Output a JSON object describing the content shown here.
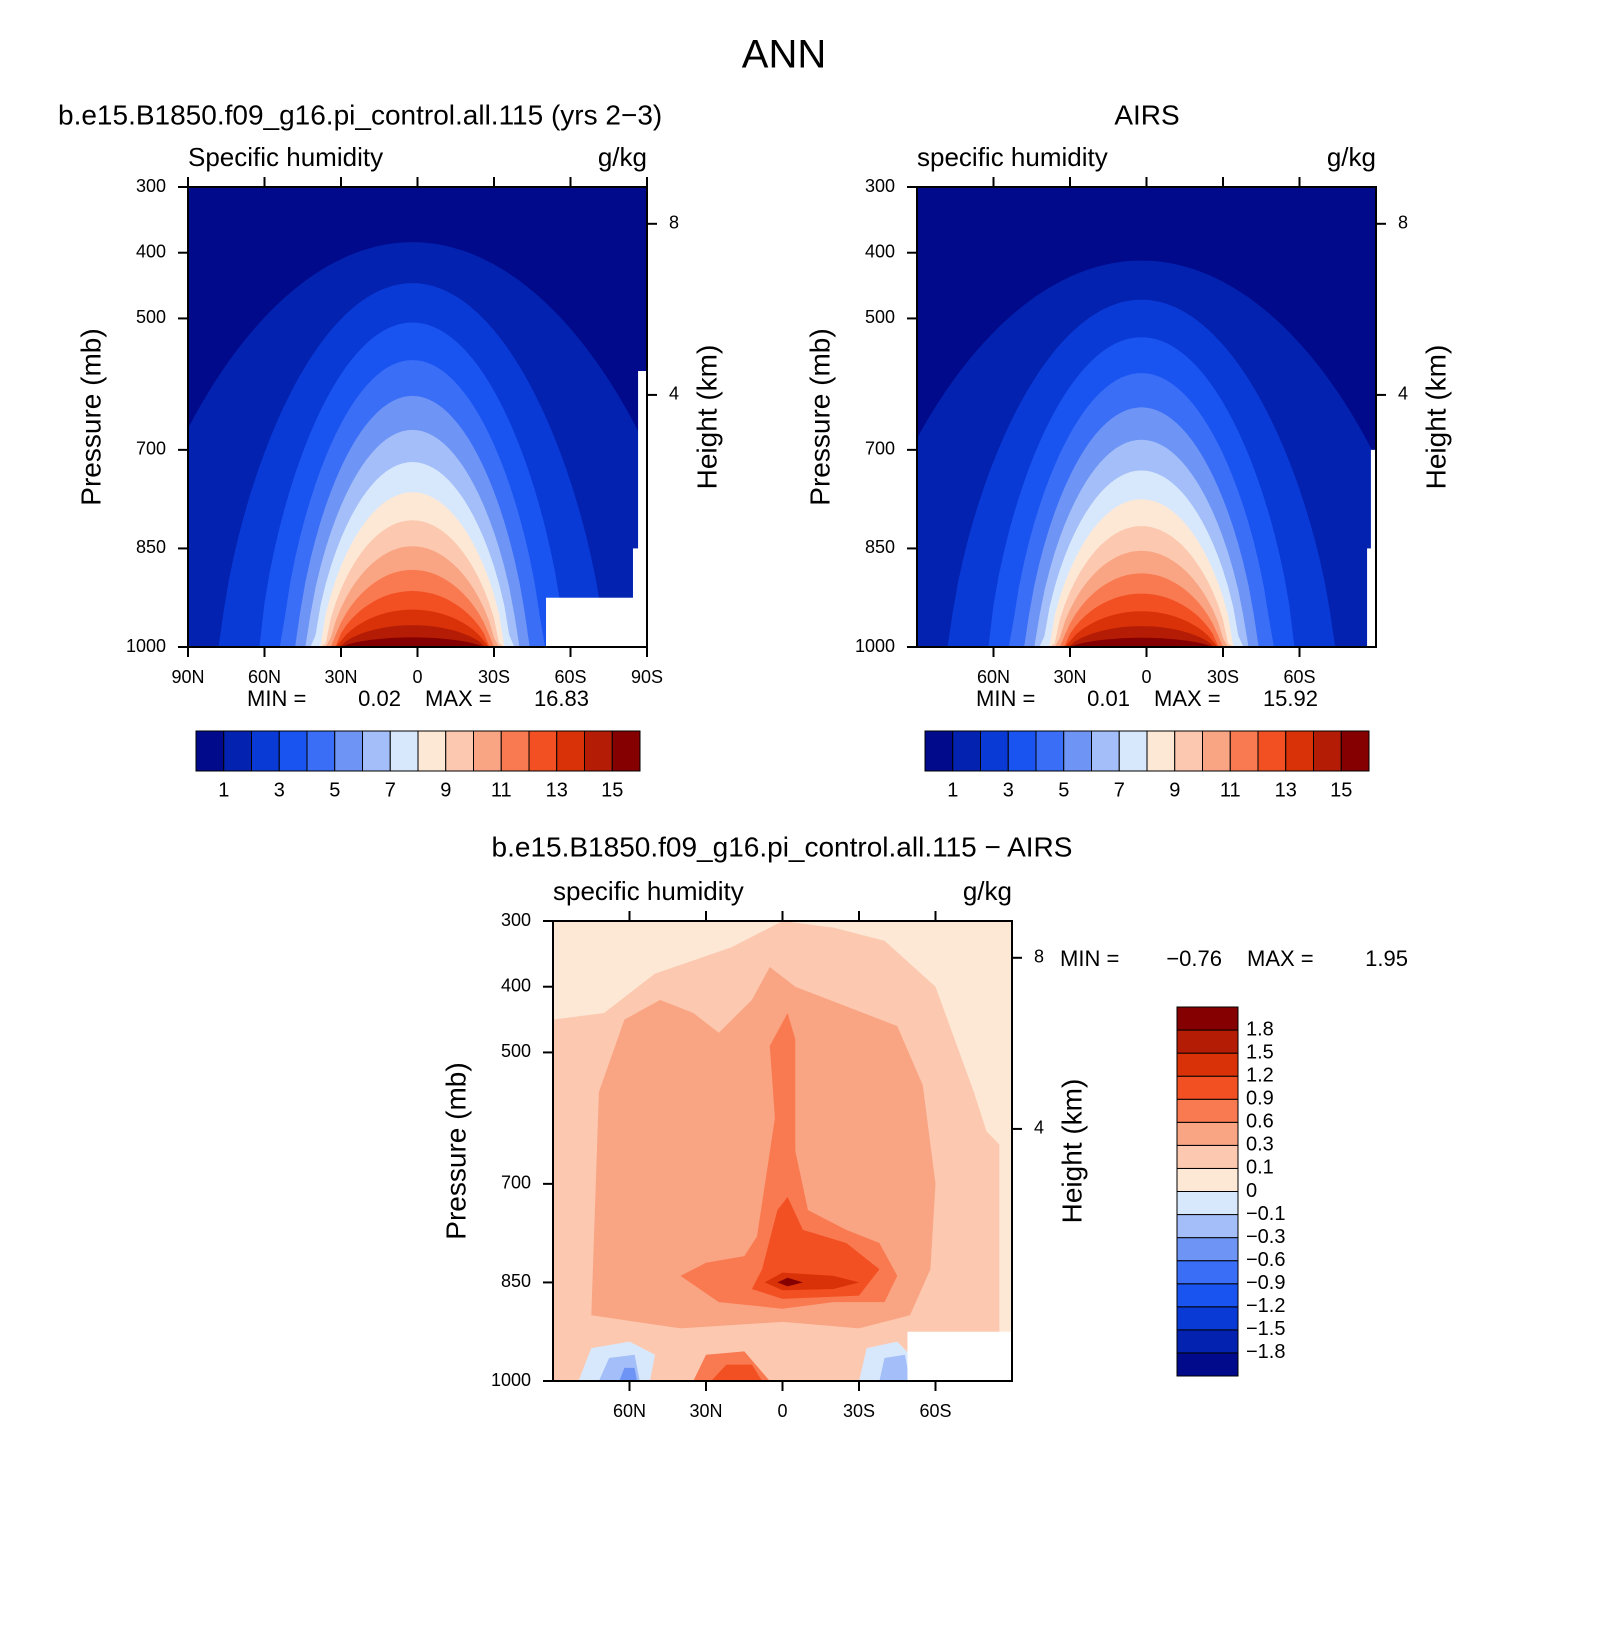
{
  "title": "ANN",
  "chart_data": [
    {
      "type": "contour",
      "title": "b.e15.B1850.f09_g16.pi_control.all.115 (yrs 2−3)",
      "left_string": "Specific humidity",
      "right_string": "g/kg",
      "ylabel": "Pressure (mb)",
      "y2label": "Height (km)",
      "xlim": [
        90,
        -90
      ],
      "xticks": [
        {
          "value": 90,
          "label": "90N"
        },
        {
          "value": 60,
          "label": "60N"
        },
        {
          "value": 30,
          "label": "30N"
        },
        0,
        {
          "value": -30,
          "label": "30S"
        },
        {
          "value": -60,
          "label": "60S"
        },
        {
          "value": -90,
          "label": "90S"
        }
      ],
      "ylim": [
        1000,
        300
      ],
      "yticks": [
        300,
        400,
        500,
        700,
        850,
        1000
      ],
      "y2lim": [
        0.11,
        9.16
      ],
      "y2ticks": [
        4,
        8
      ],
      "min_label": "MIN =",
      "min": 0.02,
      "max_label": "MAX =",
      "max": 16.83,
      "colorbar": {
        "orientation": "horizontal",
        "colors": [
          "#000a8b",
          "#0322b0",
          "#0a3ad6",
          "#1a54f0",
          "#3a6ef7",
          "#6e94f5",
          "#a3bef8",
          "#d8e8fc",
          "#fde8d6",
          "#fcc9b0",
          "#f9a584",
          "#f97a50",
          "#f24f22",
          "#d93209",
          "#b51c05",
          "#850000"
        ],
        "ticks": [
          1,
          3,
          5,
          7,
          9,
          11,
          13,
          15
        ]
      }
    },
    {
      "type": "contour",
      "title": "AIRS",
      "left_string": "specific humidity",
      "right_string": "g/kg",
      "ylabel": "Pressure (mb)",
      "y2label": "Height (km)",
      "xlim": [
        90,
        -90
      ],
      "xticks": [
        {
          "value": 60,
          "label": "60N"
        },
        {
          "value": 30,
          "label": "30N"
        },
        0,
        {
          "value": -30,
          "label": "30S"
        },
        {
          "value": -60,
          "label": "60S"
        }
      ],
      "ylim": [
        1000,
        300
      ],
      "yticks": [
        300,
        400,
        500,
        700,
        850,
        1000
      ],
      "y2lim": [
        0.11,
        9.16
      ],
      "y2ticks": [
        4,
        8
      ],
      "min_label": "MIN =",
      "min": 0.01,
      "max_label": "MAX =",
      "max": 15.92,
      "colorbar": {
        "orientation": "horizontal",
        "colors": [
          "#000a8b",
          "#0322b0",
          "#0a3ad6",
          "#1a54f0",
          "#3a6ef7",
          "#6e94f5",
          "#a3bef8",
          "#d8e8fc",
          "#fde8d6",
          "#fcc9b0",
          "#f9a584",
          "#f97a50",
          "#f24f22",
          "#d93209",
          "#b51c05",
          "#850000"
        ],
        "ticks": [
          1,
          3,
          5,
          7,
          9,
          11,
          13,
          15
        ]
      }
    },
    {
      "type": "contour",
      "title": "b.e15.B1850.f09_g16.pi_control.all.115 − AIRS",
      "left_string": "specific humidity",
      "right_string": "g/kg",
      "ylabel": "Pressure (mb)",
      "y2label": "Height (km)",
      "xlim": [
        90,
        -90
      ],
      "xticks": [
        {
          "value": 60,
          "label": "60N"
        },
        {
          "value": 30,
          "label": "30N"
        },
        0,
        {
          "value": -30,
          "label": "30S"
        },
        {
          "value": -60,
          "label": "60S"
        }
      ],
      "ylim": [
        1000,
        300
      ],
      "yticks": [
        300,
        400,
        500,
        700,
        850,
        1000
      ],
      "y2lim": [
        0.11,
        9.16
      ],
      "y2ticks": [
        4,
        8
      ],
      "min_label": "MIN =",
      "min": {
        "value": -0.76,
        "label": "−0.76"
      },
      "max_label": "MAX =",
      "max": 1.95,
      "colorbar": {
        "orientation": "vertical",
        "colors": [
          "#000a8b",
          "#0322b0",
          "#0a3ad6",
          "#1a54f0",
          "#3a6ef7",
          "#6e94f5",
          "#a3bef8",
          "#d8e8fc",
          "#fde8d6",
          "#fcc9b0",
          "#f9a584",
          "#f97a50",
          "#f24f22",
          "#d93209",
          "#b51c05",
          "#850000"
        ],
        "ticks": [
          {
            "value": -1.8,
            "label": "−1.8"
          },
          {
            "value": -1.5,
            "label": "−1.5"
          },
          {
            "value": -1.2,
            "label": "−1.2"
          },
          {
            "value": -0.9,
            "label": "−0.9"
          },
          {
            "value": -0.6,
            "label": "−0.6"
          },
          {
            "value": -0.3,
            "label": "−0.3"
          },
          {
            "value": -0.1,
            "label": "−0.1"
          },
          0,
          0.1,
          0.3,
          0.6,
          0.9,
          1.2,
          1.5,
          1.8
        ]
      }
    }
  ]
}
